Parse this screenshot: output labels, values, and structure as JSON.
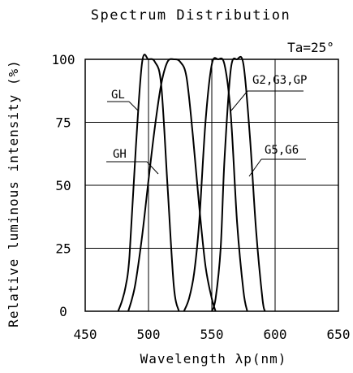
{
  "chart_data": {
    "type": "line",
    "title": "Spectrum Distribution",
    "condition_label": "Ta=25°",
    "xlabel": "Wavelength λp(nm)",
    "ylabel": "Relative luminous intensity (%)",
    "xlim": [
      450,
      650
    ],
    "ylim": [
      0,
      100
    ],
    "x_ticks": [
      "450",
      "500",
      "550",
      "600",
      "650"
    ],
    "y_ticks": [
      "0",
      "25",
      "50",
      "75",
      "100"
    ],
    "grid": true,
    "series": [
      {
        "name": "GL",
        "x": [
          476,
          479,
          482,
          485,
          490,
          495,
          500,
          505,
          510,
          515,
          520,
          524
        ],
        "values": [
          0,
          4,
          10,
          22,
          65,
          99,
          100,
          99,
          90,
          50,
          10,
          0
        ]
      },
      {
        "name": "GH",
        "x": [
          484,
          487,
          490,
          495,
          500,
          505,
          510,
          515,
          520,
          525,
          530,
          535,
          540,
          545,
          550,
          553
        ],
        "values": [
          0,
          5,
          12,
          30,
          52,
          73,
          90,
          99,
          100,
          99,
          93,
          70,
          42,
          18,
          5,
          0
        ]
      },
      {
        "name": "G2,G3,GP",
        "x": [
          528,
          532,
          536,
          540,
          545,
          550,
          555,
          560,
          565,
          570,
          575,
          578
        ],
        "values": [
          0,
          5,
          15,
          35,
          75,
          98,
          100,
          98,
          78,
          35,
          8,
          0
        ]
      },
      {
        "name": "G5,G6",
        "x": [
          550,
          553,
          557,
          560,
          565,
          570,
          575,
          580,
          585,
          590,
          592
        ],
        "values": [
          0,
          5,
          25,
          60,
          96,
          100,
          98,
          70,
          32,
          5,
          0
        ]
      }
    ],
    "annotations": [
      "GL",
      "GH",
      "G2,G3,GP",
      "G5,G6"
    ]
  }
}
